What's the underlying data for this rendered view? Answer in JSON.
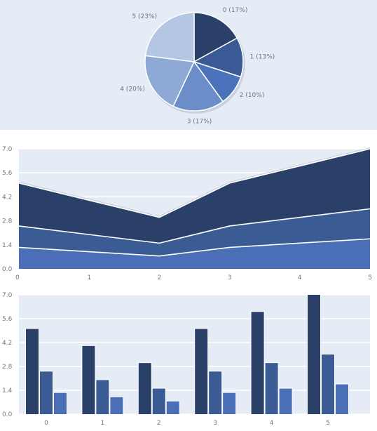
{
  "colors": {
    "panel_bg": "#e6ecf5",
    "grid": "#ffffff",
    "series": [
      "#2a4068",
      "#3b5b94",
      "#4a6fb7"
    ],
    "pie": [
      "#2a4068",
      "#3a5a95",
      "#4a72bb",
      "#6b8dca",
      "#8ea9d6",
      "#b3c6e4"
    ]
  },
  "chart_data": [
    {
      "type": "pie",
      "slices": [
        {
          "label": "0 (17%)",
          "value": 17
        },
        {
          "label": "1 (13%)",
          "value": 13
        },
        {
          "label": "2 (10%)",
          "value": 10
        },
        {
          "label": "3 (17%)",
          "value": 17
        },
        {
          "label": "4 (20%)",
          "value": 20
        },
        {
          "label": "5 (23%)",
          "value": 23
        }
      ]
    },
    {
      "type": "area",
      "stacked": true,
      "x": [
        0,
        1,
        2,
        3,
        4,
        5
      ],
      "x_ticks": [
        "0",
        "1",
        "2",
        "3",
        "4",
        "5"
      ],
      "ylim": [
        0,
        7
      ],
      "y_ticks": [
        "0.0",
        "1.4",
        "2.8",
        "4.2",
        "5.6",
        "7.0"
      ],
      "grid": true,
      "series": [
        {
          "values": [
            1.25,
            null,
            0.75,
            1.25,
            null,
            1.75
          ]
        },
        {
          "values": [
            1.25,
            null,
            0.75,
            1.25,
            null,
            1.75
          ]
        },
        {
          "values": [
            2.5,
            null,
            1.5,
            2.5,
            null,
            3.5
          ]
        }
      ]
    },
    {
      "type": "bar",
      "categories": [
        "0",
        "1",
        "2",
        "3",
        "4",
        "5"
      ],
      "ylim": [
        0,
        7
      ],
      "y_ticks": [
        "0.0",
        "1.4",
        "2.8",
        "4.2",
        "5.6",
        "7.0"
      ],
      "grid": true,
      "series": [
        {
          "values": [
            5,
            4,
            3,
            5,
            6,
            7
          ]
        },
        {
          "values": [
            2.5,
            2,
            1.5,
            2.5,
            3,
            3.5
          ]
        },
        {
          "values": [
            1.25,
            1,
            0.75,
            1.25,
            1.5,
            1.75
          ]
        }
      ]
    }
  ]
}
